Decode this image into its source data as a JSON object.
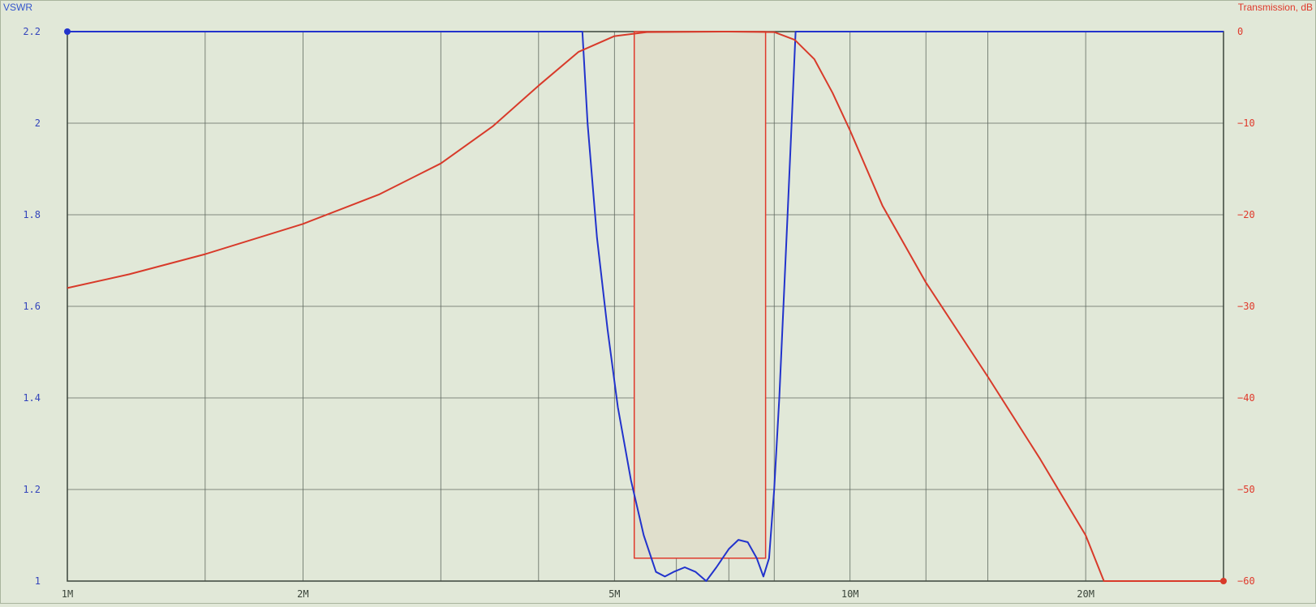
{
  "chart_data": {
    "type": "line",
    "left_axis_title": "VSWR",
    "right_axis_title": "Transmission, dB",
    "x_scale": "log",
    "xlim": [
      1,
      30
    ],
    "y_left_lim": [
      1,
      2.2
    ],
    "y_right_lim": [
      -60,
      0
    ],
    "x_tick_labels": [
      {
        "value": 1,
        "label": "1M"
      },
      {
        "value": 2,
        "label": "2M"
      },
      {
        "value": 5,
        "label": "5M"
      },
      {
        "value": 10,
        "label": "10M"
      },
      {
        "value": 20,
        "label": "20M"
      }
    ],
    "x_grid_values": [
      1,
      1.5,
      2,
      3,
      4,
      5,
      6,
      7,
      8,
      10,
      12.5,
      15,
      20,
      30
    ],
    "y_left_ticks": [
      {
        "value": 2.2,
        "label": "2.2"
      },
      {
        "value": 2.0,
        "label": "2"
      },
      {
        "value": 1.8,
        "label": "1.8"
      },
      {
        "value": 1.6,
        "label": "1.6"
      },
      {
        "value": 1.4,
        "label": "1.4"
      },
      {
        "value": 1.2,
        "label": "1.2"
      },
      {
        "value": 1.0,
        "label": "1"
      }
    ],
    "y_right_ticks": [
      {
        "value": 0,
        "label": "0"
      },
      {
        "value": -10,
        "label": "−10"
      },
      {
        "value": -20,
        "label": "−20"
      },
      {
        "value": -30,
        "label": "−30"
      },
      {
        "value": -40,
        "label": "−40"
      },
      {
        "value": -50,
        "label": "−50"
      },
      {
        "value": -60,
        "label": "−60"
      }
    ],
    "grid": true,
    "passband": {
      "x_start": 5.3,
      "x_end": 7.8,
      "y_bottom_vswr": 1.05,
      "y_top_vswr": 2.2
    },
    "series": [
      {
        "axis": "left",
        "color": "#2233cc",
        "points": [
          [
            1,
            2.2
          ],
          [
            4.55,
            2.2
          ],
          [
            4.62,
            2.0
          ],
          [
            4.75,
            1.75
          ],
          [
            4.9,
            1.55
          ],
          [
            5.05,
            1.38
          ],
          [
            5.25,
            1.22
          ],
          [
            5.45,
            1.1
          ],
          [
            5.65,
            1.02
          ],
          [
            5.8,
            1.01
          ],
          [
            5.95,
            1.02
          ],
          [
            6.15,
            1.03
          ],
          [
            6.35,
            1.02
          ],
          [
            6.55,
            1.0
          ],
          [
            6.75,
            1.03
          ],
          [
            7.0,
            1.07
          ],
          [
            7.2,
            1.09
          ],
          [
            7.4,
            1.085
          ],
          [
            7.6,
            1.05
          ],
          [
            7.75,
            1.01
          ],
          [
            7.88,
            1.05
          ],
          [
            8.0,
            1.2
          ],
          [
            8.12,
            1.4
          ],
          [
            8.22,
            1.6
          ],
          [
            8.32,
            1.8
          ],
          [
            8.42,
            2.0
          ],
          [
            8.52,
            2.2
          ],
          [
            30,
            2.2
          ]
        ]
      },
      {
        "axis": "right",
        "color": "#d83a2a",
        "points": [
          [
            1,
            -28
          ],
          [
            1.2,
            -26.5
          ],
          [
            1.5,
            -24.3
          ],
          [
            2,
            -21
          ],
          [
            2.5,
            -17.8
          ],
          [
            3,
            -14.4
          ],
          [
            3.5,
            -10.3
          ],
          [
            4,
            -5.9
          ],
          [
            4.5,
            -2.2
          ],
          [
            5,
            -0.5
          ],
          [
            5.5,
            -0.05
          ],
          [
            7,
            0
          ],
          [
            8,
            -0.05
          ],
          [
            8.5,
            -0.9
          ],
          [
            9,
            -3
          ],
          [
            9.5,
            -6.7
          ],
          [
            10,
            -10.8
          ],
          [
            11,
            -19
          ],
          [
            12.5,
            -27.4
          ],
          [
            15,
            -37.7
          ],
          [
            17.5,
            -46.7
          ],
          [
            20,
            -55
          ],
          [
            21.1,
            -60
          ],
          [
            30,
            -60
          ]
        ]
      }
    ]
  }
}
